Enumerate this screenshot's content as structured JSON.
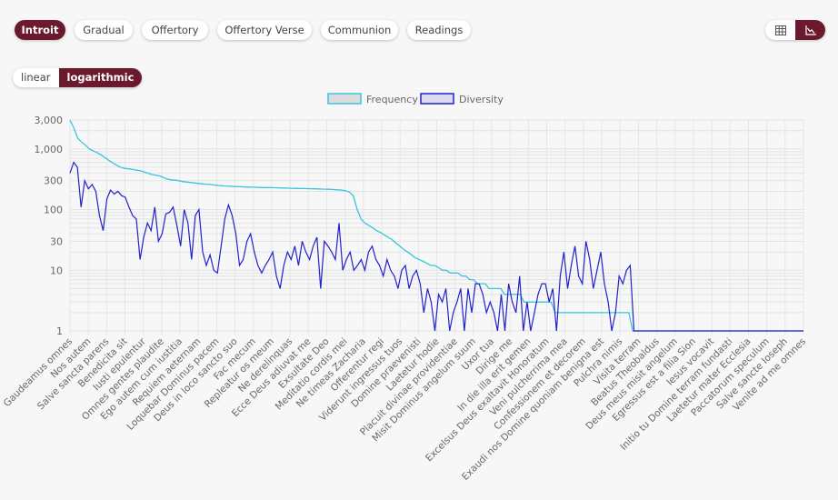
{
  "tabs": [
    {
      "label": "Introit",
      "active": true
    },
    {
      "label": "Gradual",
      "active": false
    },
    {
      "label": "Offertory",
      "active": false
    },
    {
      "label": "Offertory Verse",
      "active": false
    },
    {
      "label": "Communion",
      "active": false
    },
    {
      "label": "Readings",
      "active": false
    }
  ],
  "scale_toggle": {
    "options": [
      "linear",
      "logarithmic"
    ],
    "selected": "logarithmic"
  },
  "view_toggle": {
    "options": [
      "table-icon",
      "line-chart-icon"
    ],
    "selected": "line-chart-icon"
  },
  "colors": {
    "accent": "#6b1a2e",
    "frequency": "#36c5dd",
    "diversity": "#2222cc"
  },
  "chart_data": {
    "type": "line",
    "y_scale": "log",
    "ylim": [
      1,
      3000
    ],
    "y_ticks": [
      1,
      10,
      30,
      100,
      300,
      1000,
      3000
    ],
    "y_tick_labels": [
      "1",
      "10",
      "30",
      "100",
      "300",
      "1,000",
      "3,000"
    ],
    "grid": true,
    "legend_position": "top-center",
    "x_tick_labels": [
      "Gaudeamus omnes",
      "Nos autem",
      "Salve sancta parens",
      "Benedicita sit",
      "Iusti epulentur",
      "Omnes gentes plaudite",
      "Ego autem cum iustitia",
      "Requiem aeternam",
      "Loquebar Dominus pacem",
      "Deus in loco sancto suo",
      "Fac mecum",
      "Repleatur os meum",
      "Ne derelinquas",
      "Ecce Deus adiuvat me",
      "Exsultate Deo",
      "Meditatio cordis mei",
      "Ne timeas Zacharia",
      "Offerentur regi",
      "Viderunt ingressus tuos",
      "Domine praevenisti",
      "Laetetur hodie",
      "Placuit divinae providentiae",
      "Misit Dominus angelum suum",
      "Uxor tua",
      "Dirige me",
      "In die illa erit gemen",
      "Excelsus Deus exaltavit Honoratum",
      "Veni pulcherrima mea",
      "Confessionem et decorem",
      "Exaudi nos Domine quoniam benigna est",
      "Pulchra nimis",
      "Visita terram",
      "Beatus Theobaldus",
      "Deus meus misit angelum",
      "Egressus est a filia Sion",
      "Iesus vocavit",
      "Initio tu Domine terram fundasti",
      "Laetetur mater Ecclesia",
      "Paccatorum speculum",
      "Salve sancte Ioseph",
      "Venite ad me omnes"
    ],
    "series": [
      {
        "name": "Frequency",
        "values": [
          3000,
          2200,
          1500,
          1300,
          1150,
          1000,
          930,
          870,
          800,
          720,
          650,
          590,
          540,
          500,
          480,
          470,
          460,
          450,
          440,
          420,
          400,
          380,
          370,
          360,
          340,
          320,
          310,
          305,
          300,
          290,
          285,
          280,
          275,
          270,
          265,
          262,
          260,
          255,
          250,
          248,
          245,
          243,
          241,
          240,
          238,
          236,
          235,
          234,
          233,
          232,
          231,
          230,
          230,
          229,
          228,
          227,
          226,
          225,
          224,
          223,
          222,
          222,
          221,
          220,
          219,
          218,
          217,
          216,
          214,
          212,
          210,
          205,
          195,
          170,
          100,
          70,
          60,
          55,
          50,
          45,
          42,
          38,
          35,
          32,
          28,
          25,
          22,
          20,
          18,
          16,
          15,
          14,
          13,
          12,
          12,
          11,
          10,
          10,
          9,
          9,
          9,
          8,
          8,
          7,
          7,
          6,
          6,
          6,
          5,
          5,
          5,
          5,
          4,
          4,
          4,
          4,
          4,
          3,
          3,
          3,
          3,
          3,
          3,
          3,
          3,
          2,
          2,
          2,
          2,
          2,
          2,
          2,
          2,
          2,
          2,
          2,
          2,
          2,
          2,
          2,
          2,
          2,
          2,
          2,
          2,
          1,
          1,
          1,
          1,
          1,
          1,
          1,
          1,
          1,
          1,
          1,
          1,
          1,
          1,
          1,
          1,
          1,
          1,
          1,
          1,
          1,
          1,
          1,
          1,
          1,
          1,
          1,
          1,
          1,
          1,
          1,
          1,
          1,
          1,
          1,
          1,
          1,
          1,
          1,
          1,
          1,
          1,
          1,
          1,
          1
        ]
      },
      {
        "name": "Diversity",
        "values": [
          400,
          600,
          500,
          110,
          300,
          220,
          260,
          200,
          80,
          45,
          150,
          210,
          180,
          200,
          170,
          160,
          110,
          80,
          70,
          15,
          35,
          60,
          45,
          110,
          30,
          40,
          85,
          90,
          110,
          55,
          25,
          100,
          60,
          15,
          80,
          100,
          20,
          12,
          18,
          10,
          9,
          25,
          70,
          120,
          80,
          40,
          12,
          15,
          30,
          40,
          20,
          12,
          9,
          12,
          15,
          20,
          8,
          5,
          12,
          20,
          15,
          25,
          12,
          30,
          20,
          15,
          25,
          35,
          5,
          30,
          25,
          20,
          15,
          60,
          10,
          15,
          20,
          10,
          12,
          15,
          10,
          20,
          25,
          15,
          12,
          8,
          15,
          10,
          8,
          5,
          10,
          12,
          5,
          8,
          10,
          6,
          2,
          5,
          3,
          1,
          4,
          3,
          5,
          1,
          2,
          3,
          5,
          1,
          5,
          2,
          6,
          6,
          4,
          2,
          3,
          2,
          1,
          4,
          1,
          6,
          3,
          2,
          8,
          1,
          3,
          1,
          2,
          4,
          6,
          6,
          3,
          5,
          1,
          8,
          20,
          5,
          12,
          25,
          8,
          6,
          30,
          15,
          5,
          10,
          20,
          6,
          3,
          1,
          2,
          8,
          6,
          10,
          12,
          1,
          1,
          1,
          1,
          1,
          1,
          1,
          1,
          1,
          1,
          1,
          1,
          1,
          1,
          1,
          1,
          1,
          1,
          1,
          1,
          1,
          1,
          1,
          1,
          1,
          1,
          1,
          1,
          1,
          1,
          1,
          1,
          1,
          1,
          1,
          1,
          1,
          1,
          1,
          1,
          1,
          1,
          1,
          1,
          1,
          1,
          1
        ]
      }
    ]
  }
}
